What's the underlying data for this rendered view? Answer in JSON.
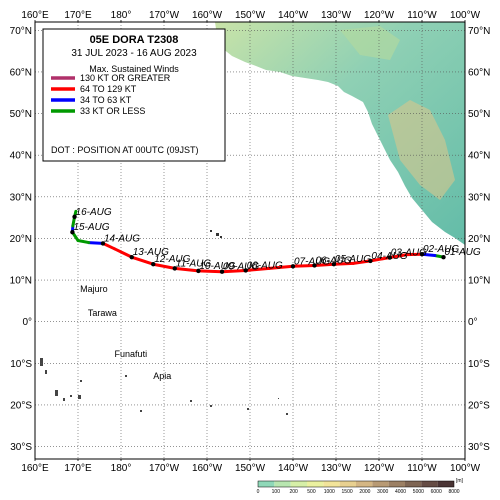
{
  "legend": {
    "title": "05E  DORA  T2308",
    "period": "31 JUL 2023 - 16 AUG 2023",
    "winds_heading": "Max. Sustained Winds",
    "categories": [
      {
        "label": "130 KT OR GREATER",
        "color": "#b0306a"
      },
      {
        "label": "64 TO 129 KT",
        "color": "#ff0000"
      },
      {
        "label": "34 TO 63 KT",
        "color": "#0000ff"
      },
      {
        "label": "33 KT OR LESS",
        "color": "#009900"
      }
    ],
    "dot_note": "DOT : POSITION AT 00UTC (09JST)"
  },
  "axes": {
    "lon_labels": [
      "160°E",
      "170°E",
      "180°",
      "170°W",
      "160°W",
      "150°W",
      "140°W",
      "130°W",
      "120°W",
      "110°W",
      "100°W"
    ],
    "lat_labels_left": [
      "70°N",
      "60°N",
      "50°N",
      "40°N",
      "30°N",
      "20°N",
      "10°N",
      "0°",
      "10°S",
      "20°S",
      "30°S"
    ],
    "lat_labels_right": [
      "70°N",
      "60°N",
      "50°N",
      "40°N",
      "30°N",
      "20°N",
      "10°N",
      "0°",
      "10°S",
      "20°S",
      "30°S"
    ],
    "lon_range_east_deg": [
      160,
      260
    ],
    "lat_range": [
      -33,
      72
    ]
  },
  "track": {
    "date_labels": [
      "01-AUG",
      "02-AUG",
      "03-AUG",
      "04-AUG",
      "05-AUG",
      "06-AUG",
      "07-AUG",
      "08-AUG",
      "09-AUG",
      "10-AUG",
      "11-AUG",
      "12-AUG",
      "13-AUG",
      "14-AUG",
      "15-AUG",
      "16-AUG"
    ],
    "points": [
      {
        "lon": 255.0,
        "lat": 15.5,
        "cat": 3
      },
      {
        "lon": 253.0,
        "lat": 15.9,
        "cat": 2
      },
      {
        "lon": 250.0,
        "lat": 16.2,
        "cat": 1
      },
      {
        "lon": 246.5,
        "lat": 16.1,
        "cat": 1
      },
      {
        "lon": 242.5,
        "lat": 15.4,
        "cat": 1
      },
      {
        "lon": 238.0,
        "lat": 14.6,
        "cat": 1
      },
      {
        "lon": 234.0,
        "lat": 14.0,
        "cat": 1
      },
      {
        "lon": 229.5,
        "lat": 13.8,
        "cat": 1
      },
      {
        "lon": 225.0,
        "lat": 13.5,
        "cat": 1
      },
      {
        "lon": 220.0,
        "lat": 13.3,
        "cat": 1
      },
      {
        "lon": 214.5,
        "lat": 12.8,
        "cat": 1
      },
      {
        "lon": 209.0,
        "lat": 12.3,
        "cat": 1
      },
      {
        "lon": 203.5,
        "lat": 12.0,
        "cat": 1
      },
      {
        "lon": 198.0,
        "lat": 12.2,
        "cat": 1
      },
      {
        "lon": 192.5,
        "lat": 12.8,
        "cat": 1
      },
      {
        "lon": 187.5,
        "lat": 13.8,
        "cat": 1
      },
      {
        "lon": 182.5,
        "lat": 15.5,
        "cat": 1
      },
      {
        "lon": 178.5,
        "lat": 17.5,
        "cat": 1
      },
      {
        "lon": 175.8,
        "lat": 18.8,
        "cat": 2
      },
      {
        "lon": 172.5,
        "lat": 19.0,
        "cat": 3
      },
      {
        "lon": 170.0,
        "lat": 19.5,
        "cat": 3
      },
      {
        "lon": 168.7,
        "lat": 21.5,
        "cat": 2
      },
      {
        "lon": 168.8,
        "lat": 23.0,
        "cat": 3
      },
      {
        "lon": 169.2,
        "lat": 25.2,
        "cat": 3
      },
      {
        "lon": 169.5,
        "lat": 26.5,
        "cat": 3
      }
    ],
    "label_anchor_points": [
      {
        "date": "01-AUG",
        "lon": 255.0,
        "lat": 15.5
      },
      {
        "date": "02-AUG",
        "lon": 250.0,
        "lat": 16.2
      },
      {
        "date": "03-AUG",
        "lon": 242.5,
        "lat": 15.4
      },
      {
        "date": "04-AUG",
        "lon": 238.0,
        "lat": 14.6
      },
      {
        "date": "05-AUG",
        "lon": 229.5,
        "lat": 13.8
      },
      {
        "date": "06-AUG",
        "lon": 225.0,
        "lat": 13.5
      },
      {
        "date": "07-AUG",
        "lon": 220.0,
        "lat": 13.3
      },
      {
        "date": "08-AUG",
        "lon": 209.0,
        "lat": 12.3
      },
      {
        "date": "09-AUG",
        "lon": 203.5,
        "lat": 12.0
      },
      {
        "date": "10-AUG",
        "lon": 198.0,
        "lat": 12.2
      },
      {
        "date": "11-AUG",
        "lon": 192.5,
        "lat": 12.8
      },
      {
        "date": "12-AUG",
        "lon": 187.5,
        "lat": 13.8
      },
      {
        "date": "13-AUG",
        "lon": 182.5,
        "lat": 15.5
      },
      {
        "date": "14-AUG",
        "lon": 175.8,
        "lat": 18.8
      },
      {
        "date": "15-AUG",
        "lon": 168.7,
        "lat": 21.5
      },
      {
        "date": "16-AUG",
        "lon": 169.2,
        "lat": 25.2
      }
    ]
  },
  "places": [
    {
      "name": "Majuro",
      "lon": 171.2,
      "lat": 7.1
    },
    {
      "name": "Tarawa",
      "lon": 173.0,
      "lat": 1.4
    },
    {
      "name": "Funafuti",
      "lon": 179.2,
      "lat": -8.5
    },
    {
      "name": "Apia",
      "lon": 188.2,
      "lat": -13.8
    }
  ],
  "elevation_scale": {
    "unit": "[m]",
    "ticks": [
      "0",
      "100",
      "200",
      "500",
      "1000",
      "1500",
      "2000",
      "3000",
      "4000",
      "5000",
      "6000",
      "8000"
    ],
    "colors": [
      "#8fd8b8",
      "#b8e6b0",
      "#d6efa8",
      "#ebf1a0",
      "#f2e49a",
      "#e8d090",
      "#d4b684",
      "#b89a74",
      "#9c8064",
      "#7f6654",
      "#654c44",
      "#4a3434"
    ]
  },
  "colors": {
    "land_low": "#6dc4b4",
    "land_mid": "#b6dca8",
    "land_high": "#d8c68c",
    "grid": "#555555",
    "frame": "#000000"
  }
}
